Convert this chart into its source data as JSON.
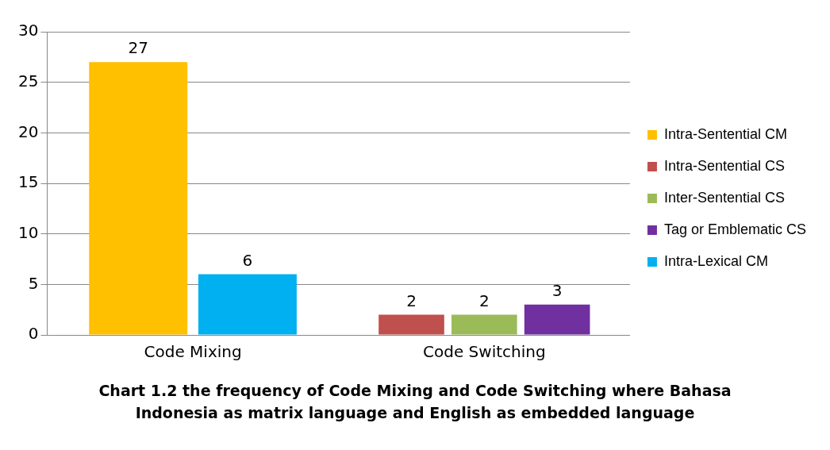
{
  "chart_data": {
    "type": "bar",
    "title": "Chart 1.2 the frequency of Code Mixing and Code Switching where Bahasa Indonesia as matrix language and English as embedded language",
    "categories": [
      "Code Mixing",
      "Code Switching"
    ],
    "series": [
      {
        "name": "Intra-Sentential CM",
        "color": "#ffc000",
        "values": [
          27,
          null
        ]
      },
      {
        "name": "Intra-Sentential CS",
        "color": "#c0504d",
        "values": [
          null,
          2
        ]
      },
      {
        "name": "Inter-Sentential CS",
        "color": "#9bbb59",
        "values": [
          null,
          2
        ]
      },
      {
        "name": "Tag or Emblematic CS",
        "color": "#7030a0",
        "values": [
          null,
          3
        ]
      },
      {
        "name": "Intra-Lexical CM",
        "color": "#00b0f0",
        "values": [
          6,
          null
        ]
      }
    ],
    "ylim": [
      0,
      30
    ],
    "yticks": [
      0,
      5,
      10,
      15,
      20,
      25,
      30
    ],
    "grid": "y",
    "legend": "right",
    "data_labels": true
  }
}
